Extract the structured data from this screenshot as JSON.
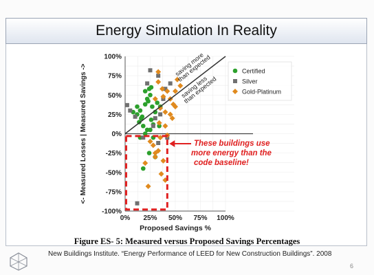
{
  "slide": {
    "title": "Energy Simulation In Reality",
    "caption": "Figure ES- 5: Measured versus Proposed Savings Percentages",
    "source": "New Buildings Institute. “Energy Performance of LEED for New Construction Buildings”. 2008",
    "page_number": "6"
  },
  "chart_data": {
    "type": "scatter",
    "xlabel": "Proposed Savings %",
    "ylabel": "<- Measured Losses | Measured Savings ->",
    "xlim": [
      0,
      100
    ],
    "ylim": [
      -100,
      100
    ],
    "xticks": [
      "0%",
      "25%",
      "50%",
      "75%",
      "100%"
    ],
    "yticks": [
      "100%",
      "75%",
      "50%",
      "25%",
      "0%",
      "-25%",
      "-50%",
      "-75%",
      "-100%"
    ],
    "legend_position": "top-right",
    "annotation_upper": [
      "saving more",
      "than expected"
    ],
    "annotation_lower": [
      "saving less",
      "than expected"
    ],
    "callout": [
      "These buildings use",
      "more energy than the",
      "code baseline!"
    ],
    "colors": {
      "certified": "#2ca02c",
      "silver": "#707070",
      "gold": "#e08a1e",
      "callout": "#e02020"
    },
    "series": [
      {
        "name": "Certified",
        "marker": "circle",
        "color": "#2ca02c",
        "points": [
          [
            8,
            28
          ],
          [
            12,
            25
          ],
          [
            15,
            30
          ],
          [
            17,
            22
          ],
          [
            20,
            55
          ],
          [
            20,
            38
          ],
          [
            22,
            45
          ],
          [
            24,
            58
          ],
          [
            25,
            50
          ],
          [
            26,
            18
          ],
          [
            27,
            35
          ],
          [
            28,
            12
          ],
          [
            22,
            5
          ],
          [
            14,
            15
          ],
          [
            18,
            10
          ],
          [
            30,
            28
          ],
          [
            32,
            40
          ],
          [
            35,
            35
          ],
          [
            15,
            -5
          ],
          [
            20,
            0
          ],
          [
            25,
            5
          ],
          [
            30,
            -30
          ],
          [
            18,
            -45
          ],
          [
            24,
            -25
          ],
          [
            16,
            20
          ],
          [
            23,
            42
          ],
          [
            34,
            10
          ],
          [
            28,
            -5
          ],
          [
            12,
            35
          ],
          [
            26,
            60
          ]
        ]
      },
      {
        "name": "Silver",
        "marker": "square",
        "color": "#707070",
        "points": [
          [
            2,
            37
          ],
          [
            5,
            30
          ],
          [
            22,
            65
          ],
          [
            25,
            82
          ],
          [
            33,
            75
          ],
          [
            40,
            58
          ],
          [
            38,
            45
          ],
          [
            45,
            65
          ],
          [
            30,
            20
          ],
          [
            28,
            10
          ],
          [
            35,
            25
          ],
          [
            18,
            -5
          ],
          [
            12,
            -90
          ],
          [
            42,
            -5
          ],
          [
            10,
            22
          ],
          [
            33,
            -12
          ]
        ]
      },
      {
        "name": "Gold-Platinum",
        "marker": "diamond",
        "color": "#e08a1e",
        "points": [
          [
            33,
            67
          ],
          [
            37,
            58
          ],
          [
            38,
            48
          ],
          [
            40,
            28
          ],
          [
            45,
            45
          ],
          [
            47,
            20
          ],
          [
            48,
            38
          ],
          [
            52,
            70
          ],
          [
            50,
            55
          ],
          [
            55,
            62
          ],
          [
            42,
            55
          ],
          [
            30,
            45
          ],
          [
            35,
            33
          ],
          [
            40,
            10
          ],
          [
            45,
            25
          ],
          [
            34,
            14
          ],
          [
            35,
            -5
          ],
          [
            38,
            -35
          ],
          [
            40,
            -60
          ],
          [
            28,
            -15
          ],
          [
            30,
            -30
          ],
          [
            20,
            -38
          ],
          [
            23,
            -68
          ],
          [
            42,
            -2
          ],
          [
            33,
            -22
          ],
          [
            36,
            -52
          ],
          [
            30,
            -25
          ],
          [
            25,
            -10
          ],
          [
            33,
            80
          ],
          [
            50,
            35
          ]
        ]
      }
    ]
  }
}
